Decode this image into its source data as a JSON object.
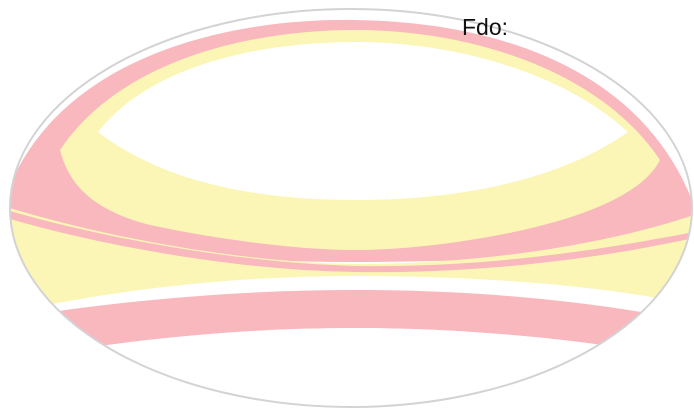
{
  "signature": {
    "label": "Fdo:"
  },
  "seal": {
    "icon": "oval-watermark-seal",
    "colors": {
      "pink": "#f8b8be",
      "yellow": "#fbf6b6",
      "outline": "#d3d3d3",
      "background": "#ffffff"
    }
  }
}
